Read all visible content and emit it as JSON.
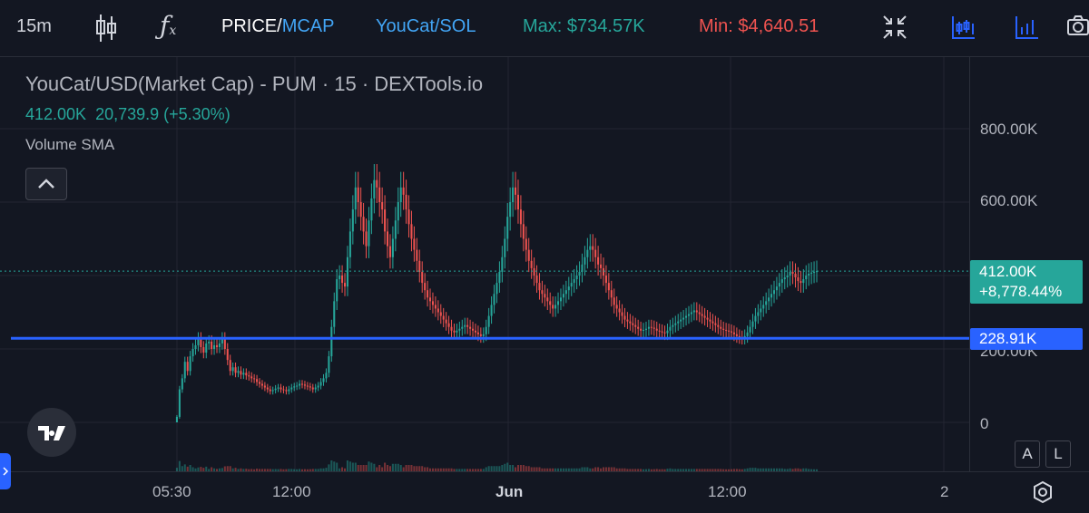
{
  "toolbar": {
    "interval": "15m",
    "price_label": "PRICE/",
    "mcap_label": "MCAP",
    "pair": "YouCat/SOL",
    "max": "Max: $734.57K",
    "min": "Min: $4,640.51"
  },
  "legend": {
    "title": "YouCat/USD(Market Cap) - PUM · 15 · DEXTools.io",
    "last": "412.00K",
    "change": "20,739.9 (+5.30%)",
    "volume_label": "Volume SMA"
  },
  "chart_data": {
    "type": "candlestick",
    "ylim": [
      0,
      900000
    ],
    "yticks": [
      "800.00K",
      "600.00K",
      "200.00K",
      "0"
    ],
    "xticks": [
      "05:30",
      "12:00",
      "Jun",
      "12:00",
      "2"
    ],
    "current_value": "412.00K",
    "current_change": "+8,778.44%",
    "horizontal_line": "228.91K",
    "colors": {
      "up": "#26a69a",
      "down": "#ef5350",
      "line": "#2962ff"
    },
    "closes": [
      0,
      15000,
      90000,
      120000,
      165000,
      140000,
      180000,
      200000,
      210000,
      228000,
      205000,
      190000,
      215000,
      220000,
      200000,
      210000,
      205000,
      215000,
      228000,
      200000,
      170000,
      140000,
      150000,
      135000,
      140000,
      130000,
      135000,
      128000,
      125000,
      120000,
      118000,
      110000,
      105000,
      100000,
      95000,
      90000,
      85000,
      88000,
      92000,
      95000,
      90000,
      88000,
      85000,
      90000,
      95000,
      98000,
      100000,
      105000,
      103000,
      100000,
      98000,
      95000,
      90000,
      95000,
      100000,
      110000,
      120000,
      135000,
      180000,
      260000,
      330000,
      390000,
      400000,
      380000,
      370000,
      450000,
      520000,
      580000,
      640000,
      600000,
      560000,
      520000,
      480000,
      550000,
      610000,
      660000,
      640000,
      600000,
      580000,
      520000,
      480000,
      450000,
      500000,
      550000,
      600000,
      640000,
      620000,
      580000,
      540000,
      500000,
      470000,
      440000,
      410000,
      380000,
      360000,
      340000,
      330000,
      320000,
      310000,
      300000,
      290000,
      280000,
      270000,
      260000,
      250000,
      245000,
      250000,
      255000,
      260000,
      265000,
      260000,
      255000,
      250000,
      245000,
      240000,
      235000,
      240000,
      260000,
      290000,
      320000,
      350000,
      380000,
      410000,
      450000,
      500000,
      560000,
      600000,
      640000,
      620000,
      580000,
      540000,
      500000,
      470000,
      440000,
      420000,
      400000,
      380000,
      360000,
      350000,
      340000,
      330000,
      320000,
      310000,
      320000,
      330000,
      340000,
      350000,
      360000,
      370000,
      380000,
      390000,
      400000,
      410000,
      430000,
      450000,
      470000,
      480000,
      470000,
      450000,
      430000,
      420000,
      400000,
      380000,
      360000,
      340000,
      320000,
      310000,
      300000,
      290000,
      280000,
      275000,
      270000,
      265000,
      260000,
      255000,
      250000,
      252000,
      255000,
      260000,
      258000,
      255000,
      250000,
      248000,
      245000,
      243000,
      250000,
      260000,
      265000,
      270000,
      275000,
      280000,
      285000,
      290000,
      295000,
      300000,
      305000,
      300000,
      295000,
      290000,
      285000,
      280000,
      275000,
      270000,
      265000,
      260000,
      255000,
      252000,
      250000,
      248000,
      245000,
      240000,
      235000,
      232000,
      230000,
      235000,
      245000,
      260000,
      275000,
      290000,
      300000,
      310000,
      320000,
      330000,
      340000,
      350000,
      360000,
      370000,
      380000,
      390000,
      395000,
      400000,
      410000,
      405000,
      395000,
      385000,
      380000,
      390000,
      400000,
      405000,
      408000,
      410000,
      412000
    ]
  },
  "controls": {
    "a_label": "A",
    "l_label": "L"
  }
}
